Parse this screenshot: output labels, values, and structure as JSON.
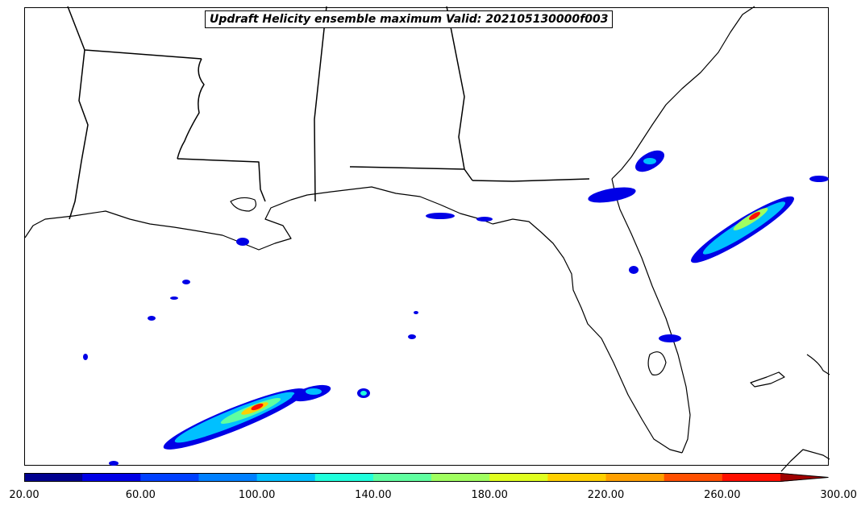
{
  "title": "Updraft Helicity ensemble maximum Valid: 202105130000f003",
  "colorbar": {
    "tick_labels": [
      "20.00",
      "60.00",
      "100.00",
      "140.00",
      "180.00",
      "220.00",
      "260.00",
      "300.00"
    ],
    "colors": [
      "#00008f",
      "#0000e6",
      "#0040ff",
      "#0080ff",
      "#00c0ff",
      "#20ffdc",
      "#60ffa0",
      "#a0ff60",
      "#e0ff20",
      "#ffd000",
      "#ffa000",
      "#ff5000",
      "#ff1000",
      "#a00000"
    ],
    "extend": "max"
  },
  "map": {
    "region": "US Gulf Coast and Florida",
    "line_color": "#000000"
  }
}
